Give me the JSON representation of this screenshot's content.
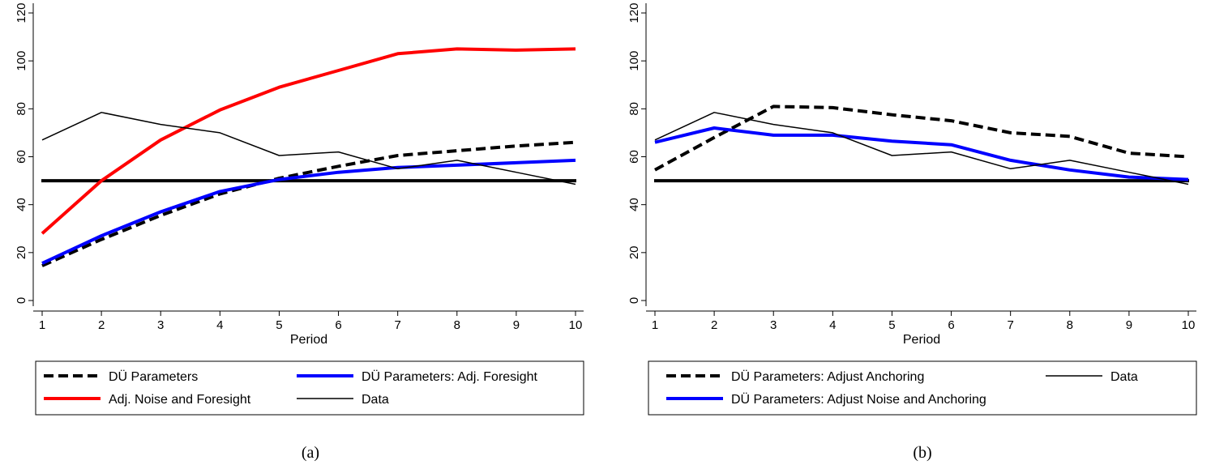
{
  "chart_data": [
    {
      "type": "line",
      "caption": "(a)",
      "xlabel": "Period",
      "ylabel": "",
      "x": [
        1,
        2,
        3,
        4,
        5,
        6,
        7,
        8,
        9,
        10
      ],
      "xlim": [
        1,
        10
      ],
      "ylim": [
        0,
        120
      ],
      "yticks": [
        0,
        20,
        40,
        60,
        80,
        100,
        120
      ],
      "legend_position": "bottom",
      "series": [
        {
          "name": "DÜ Parameters",
          "color": "#000000",
          "style": "dashed",
          "width": 4,
          "values": [
            14.5,
            25.5,
            35.5,
            44.5,
            51,
            56,
            60.5,
            62.5,
            64.5,
            66
          ]
        },
        {
          "name": "DÜ Parameters: Adj. Foresight",
          "color": "#0000ff",
          "style": "solid",
          "width": 4,
          "values": [
            15.5,
            27,
            37,
            45.5,
            50.5,
            53.5,
            55.5,
            56.5,
            57.5,
            58.5
          ]
        },
        {
          "name": "Adj. Noise and Foresight",
          "color": "#ff0000",
          "style": "solid",
          "width": 4,
          "values": [
            28,
            50,
            67,
            79.5,
            89,
            96,
            103,
            105,
            104.5,
            105
          ]
        },
        {
          "name": "Data",
          "color": "#000000",
          "style": "solid",
          "width": 1.5,
          "values": [
            67,
            78.5,
            73.5,
            70,
            60.5,
            62,
            55,
            58.5,
            53.5,
            48.5
          ]
        }
      ],
      "reference_lines": [
        {
          "y": 50,
          "color": "#000000",
          "width": 4
        }
      ]
    },
    {
      "type": "line",
      "caption": "(b)",
      "xlabel": "Period",
      "ylabel": "",
      "x": [
        1,
        2,
        3,
        4,
        5,
        6,
        7,
        8,
        9,
        10
      ],
      "xlim": [
        1,
        10
      ],
      "ylim": [
        0,
        120
      ],
      "yticks": [
        0,
        20,
        40,
        60,
        80,
        100,
        120
      ],
      "legend_position": "bottom",
      "series": [
        {
          "name": "DÜ Parameters: Adjust Anchoring",
          "color": "#000000",
          "style": "dashed",
          "width": 4,
          "values": [
            54.5,
            68,
            81,
            80.5,
            77.5,
            75,
            70,
            68.5,
            61.5,
            60
          ]
        },
        {
          "name": "DÜ Parameters: Adjust Noise and Anchoring",
          "color": "#0000ff",
          "style": "solid",
          "width": 4,
          "values": [
            66,
            72,
            69,
            69,
            66.5,
            65,
            58.5,
            54.5,
            51.5,
            50.5
          ]
        },
        {
          "name": "Data",
          "color": "#000000",
          "style": "solid",
          "width": 1.5,
          "values": [
            67,
            78.5,
            73.5,
            70,
            60.5,
            62,
            55,
            58.5,
            53.5,
            48.5
          ]
        }
      ],
      "reference_lines": [
        {
          "y": 50,
          "color": "#000000",
          "width": 4
        }
      ]
    }
  ]
}
